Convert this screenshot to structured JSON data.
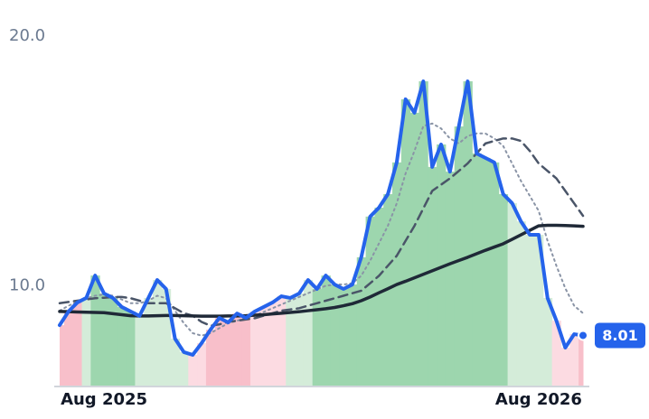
{
  "chart_data": {
    "type": "line",
    "categories": [
      null,
      null,
      null,
      null,
      null,
      "Aug 2025",
      null,
      null,
      null,
      null,
      null,
      null,
      null,
      null,
      null,
      null,
      null,
      null,
      null,
      null,
      null,
      null,
      null,
      null,
      null,
      null,
      null,
      null,
      null,
      null,
      null,
      null,
      null,
      null,
      null,
      null,
      null,
      null,
      null,
      null,
      null,
      null,
      null,
      null,
      null,
      null,
      null,
      null,
      null,
      null,
      null,
      null,
      null,
      null,
      "Aug 2026",
      null,
      null,
      null,
      null,
      null
    ],
    "ylim": [
      6,
      20
    ],
    "yticks": [
      {
        "value": 10,
        "label": "10.0"
      },
      {
        "value": 20,
        "label": "20.0"
      }
    ],
    "series": [
      {
        "color": "#2563eb",
        "width": 4,
        "dash": "none",
        "values": [
          8.42,
          8.97,
          9.33,
          9.51,
          10.41,
          9.69,
          9.51,
          9.15,
          8.97,
          8.79,
          9.51,
          10.23,
          9.87,
          7.88,
          7.34,
          7.23,
          7.7,
          8.24,
          8.71,
          8.53,
          8.89,
          8.71,
          8.97,
          9.15,
          9.33,
          9.58,
          9.51,
          9.69,
          10.23,
          9.87,
          10.41,
          10.05,
          9.87,
          10.05,
          11.14,
          12.77,
          13.13,
          13.67,
          14.94,
          17.47,
          16.93,
          18.19,
          14.76,
          15.66,
          14.57,
          16.38,
          18.19,
          15.3,
          15.12,
          14.94,
          13.67,
          13.31,
          12.58,
          12.04,
          12.04,
          9.51,
          8.6,
          7.52,
          8.06,
          8.01
        ]
      },
      {
        "color": "#1f2937",
        "width": 3.5,
        "dash": "none",
        "values": [
          8.97,
          8.96,
          8.95,
          8.94,
          8.93,
          8.92,
          8.88,
          8.84,
          8.8,
          8.79,
          8.79,
          8.8,
          8.81,
          8.81,
          8.8,
          8.79,
          8.78,
          8.78,
          8.78,
          8.79,
          8.79,
          8.8,
          8.82,
          8.84,
          8.87,
          8.9,
          8.93,
          8.96,
          9.0,
          9.04,
          9.08,
          9.13,
          9.2,
          9.28,
          9.4,
          9.55,
          9.72,
          9.88,
          10.05,
          10.18,
          10.32,
          10.46,
          10.6,
          10.74,
          10.88,
          11.01,
          11.14,
          11.28,
          11.42,
          11.55,
          11.68,
          11.86,
          12.04,
          12.22,
          12.4,
          12.42,
          12.42,
          12.41,
          12.4,
          12.38
        ]
      },
      {
        "color": "#4a5568",
        "width": 2.5,
        "dash": "10 6",
        "values": [
          9.3,
          9.35,
          9.4,
          9.45,
          9.5,
          9.52,
          9.55,
          9.55,
          9.5,
          9.4,
          9.3,
          9.3,
          9.3,
          9.1,
          8.9,
          8.8,
          8.55,
          8.4,
          8.45,
          8.55,
          8.6,
          8.65,
          8.7,
          8.8,
          8.9,
          9.0,
          9.05,
          9.1,
          9.2,
          9.3,
          9.4,
          9.5,
          9.6,
          9.7,
          9.8,
          10.1,
          10.4,
          10.8,
          11.2,
          11.8,
          12.4,
          13.1,
          13.8,
          14.05,
          14.3,
          14.6,
          14.9,
          15.3,
          15.7,
          15.8,
          15.9,
          15.9,
          15.8,
          15.4,
          14.9,
          14.6,
          14.3,
          13.8,
          13.3,
          12.8
        ]
      },
      {
        "color": "#8a94a6",
        "width": 2,
        "dash": "2 4",
        "values": [
          9.0,
          9.2,
          9.35,
          9.5,
          9.6,
          9.65,
          9.6,
          9.45,
          9.3,
          9.3,
          9.4,
          9.6,
          9.5,
          9.0,
          8.5,
          8.1,
          8.0,
          8.1,
          8.3,
          8.5,
          8.6,
          8.7,
          8.8,
          8.95,
          9.1,
          9.25,
          9.4,
          9.55,
          9.7,
          9.85,
          10.0,
          10.05,
          10.05,
          10.1,
          10.4,
          11.0,
          11.7,
          12.4,
          13.3,
          14.5,
          15.4,
          16.4,
          16.5,
          16.3,
          15.9,
          15.7,
          16.0,
          16.1,
          16.1,
          15.9,
          15.6,
          14.9,
          14.2,
          13.6,
          13.0,
          11.8,
          10.8,
          9.9,
          9.2,
          8.9
        ]
      }
    ],
    "area_colors": [
      "#f8bfca",
      "#f8bfca",
      "#f8bfca",
      "#d4ecd9",
      "#9dd6ae",
      "#9dd6ae",
      "#9dd6ae",
      "#9dd6ae",
      "#9dd6ae",
      "#d4ecd9",
      "#d4ecd9",
      "#d4ecd9",
      "#d4ecd9",
      "#d4ecd9",
      "#d4ecd9",
      "#fcdbe2",
      "#fcdbe2",
      "#f8bfca",
      "#f8bfca",
      "#f8bfca",
      "#f8bfca",
      "#f8bfca",
      "#fcdbe2",
      "#fcdbe2",
      "#fcdbe2",
      "#fcdbe2",
      "#d4ecd9",
      "#d4ecd9",
      "#d4ecd9",
      "#9dd6ae",
      "#9dd6ae",
      "#9dd6ae",
      "#9dd6ae",
      "#9dd6ae",
      "#9dd6ae",
      "#9dd6ae",
      "#9dd6ae",
      "#9dd6ae",
      "#9dd6ae",
      "#9dd6ae",
      "#9dd6ae",
      "#9dd6ae",
      "#9dd6ae",
      "#9dd6ae",
      "#9dd6ae",
      "#9dd6ae",
      "#9dd6ae",
      "#9dd6ae",
      "#9dd6ae",
      "#9dd6ae",
      "#9dd6ae",
      "#d4ecd9",
      "#d4ecd9",
      "#d4ecd9",
      "#d4ecd9",
      "#d4ecd9",
      "#fcdbe2",
      "#fcdbe2",
      "#fcdbe2",
      "#f8bfca"
    ],
    "badge_color": "#2563eb"
  }
}
